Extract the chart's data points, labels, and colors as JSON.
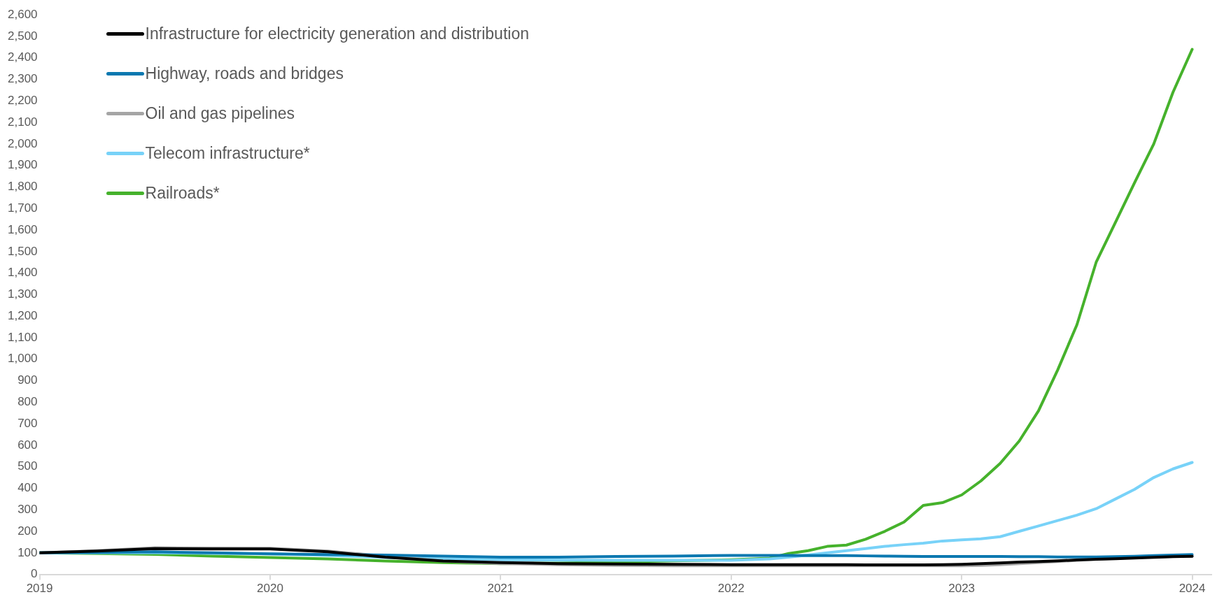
{
  "chart_data": {
    "type": "line",
    "x": [
      "2019-01",
      "2019-04",
      "2019-07",
      "2019-10",
      "2020-01",
      "2020-04",
      "2020-07",
      "2020-10",
      "2021-01",
      "2021-04",
      "2021-07",
      "2021-10",
      "2022-01",
      "2022-03",
      "2022-04",
      "2022-05",
      "2022-06",
      "2022-07",
      "2022-08",
      "2022-09",
      "2022-10",
      "2022-11",
      "2022-12",
      "2023-01",
      "2023-02",
      "2023-03",
      "2023-04",
      "2023-05",
      "2023-06",
      "2023-07",
      "2023-08",
      "2023-09",
      "2023-10",
      "2023-11",
      "2023-12",
      "2024-01"
    ],
    "series": [
      {
        "name": "Infrastructure for electricity generation and distribution",
        "color": "#000000",
        "values": [
          100,
          108,
          120,
          118,
          118,
          105,
          80,
          62,
          55,
          50,
          48,
          47,
          45,
          45,
          45,
          45,
          45,
          45,
          44,
          44,
          44,
          44,
          45,
          47,
          50,
          53,
          57,
          60,
          63,
          67,
          70,
          73,
          76,
          79,
          82,
          84
        ]
      },
      {
        "name": "Highway, roads and bridges",
        "color": "#0a78b0",
        "values": [
          100,
          102,
          105,
          100,
          95,
          92,
          90,
          85,
          80,
          80,
          83,
          85,
          88,
          88,
          88,
          87,
          87,
          87,
          86,
          85,
          84,
          83,
          83,
          83,
          83,
          83,
          82,
          82,
          81,
          81,
          81,
          82,
          84,
          87,
          90,
          92
        ]
      },
      {
        "name": "Oil and gas pipelines",
        "color": "#a5a5a5",
        "values": [
          100,
          110,
          124,
          122,
          121,
          108,
          85,
          62,
          50,
          45,
          42,
          40,
          40,
          40,
          40,
          40,
          40,
          40,
          40,
          40,
          40,
          40,
          40,
          40,
          42,
          45,
          50,
          55,
          60,
          65,
          70,
          74,
          78,
          81,
          83,
          84
        ]
      },
      {
        "name": "Telecom infrastructure*",
        "color": "#78d2f8",
        "values": [
          100,
          100,
          100,
          98,
          95,
          88,
          78,
          72,
          68,
          66,
          65,
          65,
          65,
          72,
          80,
          90,
          100,
          110,
          120,
          130,
          138,
          145,
          155,
          160,
          165,
          175,
          200,
          225,
          250,
          275,
          305,
          350,
          395,
          450,
          490,
          520
        ]
      },
      {
        "name": "Railroads*",
        "color": "#46b22c",
        "values": [
          100,
          97,
          93,
          85,
          78,
          72,
          62,
          55,
          50,
          52,
          57,
          63,
          68,
          75,
          97,
          110,
          130,
          136,
          163,
          200,
          243,
          320,
          333,
          369,
          434,
          515,
          620,
          760,
          950,
          1160,
          1450,
          1635,
          1820,
          2000,
          2240,
          2440
        ]
      }
    ],
    "xlim": [
      "2019",
      "2024-02"
    ],
    "xticks": [
      {
        "value": "2019",
        "label": "2019"
      },
      {
        "value": "2020",
        "label": "2020"
      },
      {
        "value": "2021",
        "label": "2021"
      },
      {
        "value": "2022",
        "label": "2022"
      },
      {
        "value": "2023",
        "label": "2023"
      },
      {
        "value": "2024",
        "label": "2024"
      }
    ],
    "ylim": [
      0,
      2600
    ],
    "yticks": [
      {
        "value": 0,
        "label": "0"
      },
      {
        "value": 100,
        "label": "100"
      },
      {
        "value": 200,
        "label": "200"
      },
      {
        "value": 300,
        "label": "300"
      },
      {
        "value": 400,
        "label": "400"
      },
      {
        "value": 500,
        "label": "500"
      },
      {
        "value": 600,
        "label": "600"
      },
      {
        "value": 700,
        "label": "700"
      },
      {
        "value": 800,
        "label": "800"
      },
      {
        "value": 900,
        "label": "900"
      },
      {
        "value": 1000,
        "label": "1,000"
      },
      {
        "value": 1100,
        "label": "1,100"
      },
      {
        "value": 1200,
        "label": "1,200"
      },
      {
        "value": 1300,
        "label": "1,300"
      },
      {
        "value": 1400,
        "label": "1,400"
      },
      {
        "value": 1500,
        "label": "1,500"
      },
      {
        "value": 1600,
        "label": "1,600"
      },
      {
        "value": 1700,
        "label": "1,700"
      },
      {
        "value": 1800,
        "label": "1,800"
      },
      {
        "value": 1900,
        "label": "1,900"
      },
      {
        "value": 2000,
        "label": "2,000"
      },
      {
        "value": 2100,
        "label": "2,100"
      },
      {
        "value": 2200,
        "label": "2,200"
      },
      {
        "value": 2300,
        "label": "2,300"
      },
      {
        "value": 2400,
        "label": "2,400"
      },
      {
        "value": 2500,
        "label": "2,500"
      },
      {
        "value": 2600,
        "label": "2,600"
      }
    ],
    "legend": "top left",
    "marker": "none",
    "line_style": "solid"
  }
}
